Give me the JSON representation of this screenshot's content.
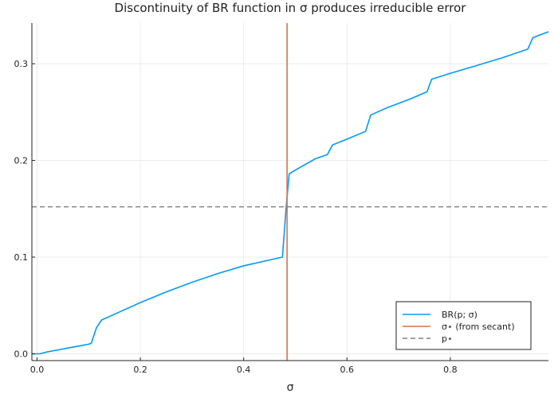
{
  "chart_data": {
    "type": "line",
    "title": "Discontinuity of BR function in σ produces irreducible error",
    "xlabel": "σ",
    "ylabel": "",
    "xlim": [
      -0.01,
      0.99
    ],
    "ylim": [
      -0.007,
      0.342
    ],
    "x_ticks": [
      0.0,
      0.2,
      0.4,
      0.6,
      0.8
    ],
    "x_tick_labels": [
      "0.0",
      "0.2",
      "0.4",
      "0.6",
      "0.8"
    ],
    "y_ticks": [
      0.0,
      0.1,
      0.2,
      0.3
    ],
    "y_tick_labels": [
      "0.0",
      "0.1",
      "0.2",
      "0.3"
    ],
    "grid": true,
    "legend_position": "bottom-right",
    "series": [
      {
        "name": "BR(p; σ)",
        "style": "solid",
        "color": "#009AFA",
        "x": [
          -0.01,
          0.005,
          0.02,
          0.04,
          0.06,
          0.08,
          0.1,
          0.105,
          0.115,
          0.125,
          0.15,
          0.2,
          0.25,
          0.3,
          0.35,
          0.4,
          0.45,
          0.475,
          0.482,
          0.488,
          0.5,
          0.52,
          0.54,
          0.562,
          0.572,
          0.6,
          0.636,
          0.646,
          0.68,
          0.72,
          0.755,
          0.764,
          0.8,
          0.85,
          0.9,
          0.95,
          0.96,
          0.99
        ],
        "y": [
          0.0,
          0.0,
          0.002,
          0.004,
          0.006,
          0.008,
          0.01,
          0.011,
          0.027,
          0.035,
          0.041,
          0.053,
          0.064,
          0.074,
          0.083,
          0.091,
          0.097,
          0.1,
          0.15,
          0.186,
          0.19,
          0.196,
          0.202,
          0.206,
          0.216,
          0.222,
          0.23,
          0.247,
          0.255,
          0.263,
          0.271,
          0.284,
          0.29,
          0.298,
          0.306,
          0.315,
          0.327,
          0.333
        ]
      },
      {
        "name": "σ⋆ (from secant)",
        "style": "vline",
        "color": "#E26F46",
        "x_value": 0.484
      },
      {
        "name": "p⋆",
        "style": "hline-dashed",
        "color": "#808080",
        "y_value": 0.152
      }
    ]
  }
}
